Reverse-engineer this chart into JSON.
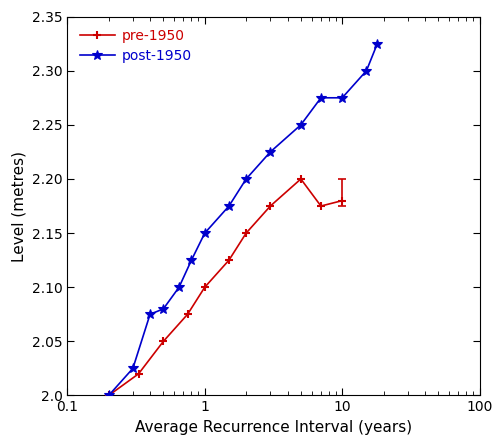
{
  "pre1950_x": [
    0.2,
    0.33,
    0.5,
    0.75,
    1.0,
    1.5,
    2.0,
    3.0,
    5.0,
    7.0,
    10.0
  ],
  "pre1950_y": [
    2.0,
    2.02,
    2.05,
    2.075,
    2.1,
    2.125,
    2.15,
    2.175,
    2.2,
    2.175,
    2.18
  ],
  "pre1950_err_x": 10.0,
  "pre1950_err_y": 2.18,
  "pre1950_err_low": 0.005,
  "pre1950_err_high": 0.02,
  "post1950_x": [
    0.2,
    0.3,
    0.4,
    0.5,
    0.65,
    0.8,
    1.0,
    1.5,
    2.0,
    3.0,
    5.0,
    7.0,
    10.0,
    15.0,
    18.0
  ],
  "post1950_y": [
    2.0,
    2.025,
    2.075,
    2.08,
    2.1,
    2.125,
    2.15,
    2.175,
    2.2,
    2.225,
    2.25,
    2.275,
    2.275,
    2.3,
    2.325
  ],
  "xlabel": "Average Recurrence Interval (years)",
  "ylabel": "Level (metres)",
  "xlim": [
    0.1,
    100
  ],
  "ylim": [
    2.0,
    2.35
  ],
  "pre1950_color": "#cc0000",
  "post1950_color": "#0000cc",
  "legend_labels": [
    "pre-1950",
    "post-1950"
  ],
  "yticks": [
    2.0,
    2.05,
    2.1,
    2.15,
    2.2,
    2.25,
    2.3,
    2.35
  ],
  "xticks": [
    0.1,
    1,
    10,
    100
  ],
  "xtick_labels": [
    "0.1",
    "1",
    "10",
    "100"
  ]
}
